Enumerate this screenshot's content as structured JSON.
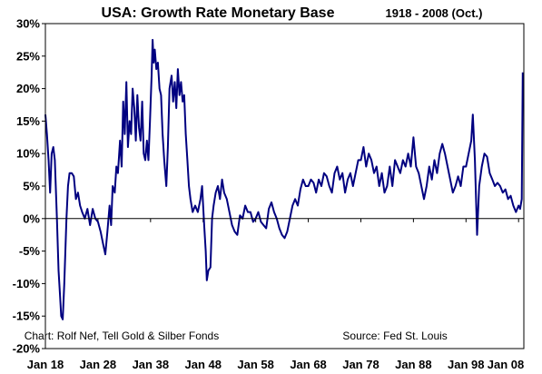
{
  "chart_data": {
    "type": "line",
    "title": "USA: Growth Rate Monetary Base",
    "subtitle": "1918 -  2008 (Oct.)",
    "xlabel": "",
    "ylabel": "",
    "xlim": [
      1918,
      2009
    ],
    "ylim": [
      -20,
      30
    ],
    "grid": false,
    "line_color": "#000080",
    "x_ticks": [
      {
        "x": 1918,
        "label": "Jan 18"
      },
      {
        "x": 1928,
        "label": "Jan 28"
      },
      {
        "x": 1938,
        "label": "Jan 38"
      },
      {
        "x": 1948,
        "label": "Jan 48"
      },
      {
        "x": 1958,
        "label": "Jan 58"
      },
      {
        "x": 1968,
        "label": "Jan 68"
      },
      {
        "x": 1978,
        "label": "Jan 78"
      },
      {
        "x": 1988,
        "label": "Jan 88"
      },
      {
        "x": 1998,
        "label": "Jan 98"
      },
      {
        "x": 2008,
        "label": "Jan 08"
      }
    ],
    "y_ticks": [
      {
        "y": 30,
        "label": "30%"
      },
      {
        "y": 25,
        "label": "25%"
      },
      {
        "y": 20,
        "label": "20%"
      },
      {
        "y": 15,
        "label": "15%"
      },
      {
        "y": 10,
        "label": "10%"
      },
      {
        "y": 5,
        "label": "5%"
      },
      {
        "y": 0,
        "label": "0%"
      },
      {
        "y": -5,
        "label": "-5%"
      },
      {
        "y": -10,
        "label": "-10%"
      },
      {
        "y": -15,
        "label": "-15%"
      },
      {
        "y": -20,
        "label": "-20%"
      }
    ],
    "annotations": [
      {
        "text": "Chart: Rolf Nef, Tell Gold & Silber Fonds",
        "x": 1932.5,
        "y": -18
      },
      {
        "text": "Source: Fed St. Louis",
        "x": 1984.5,
        "y": -18
      }
    ],
    "series": [
      {
        "values": [
          [
            1918.0,
            16.0
          ],
          [
            1918.3,
            13.0
          ],
          [
            1918.6,
            9.0
          ],
          [
            1918.9,
            4.0
          ],
          [
            1919.2,
            10.0
          ],
          [
            1919.5,
            11.0
          ],
          [
            1919.8,
            9.0
          ],
          [
            1920.2,
            0.0
          ],
          [
            1920.5,
            -8.0
          ],
          [
            1920.8,
            -12.0
          ],
          [
            1921.0,
            -15.0
          ],
          [
            1921.3,
            -15.5
          ],
          [
            1921.6,
            -10.0
          ],
          [
            1922.0,
            0.0
          ],
          [
            1922.3,
            5.0
          ],
          [
            1922.6,
            7.0
          ],
          [
            1923.0,
            7.0
          ],
          [
            1923.4,
            6.5
          ],
          [
            1923.8,
            3.0
          ],
          [
            1924.2,
            4.0
          ],
          [
            1924.6,
            2.0
          ],
          [
            1925.0,
            1.0
          ],
          [
            1925.5,
            0.0
          ],
          [
            1926.0,
            1.5
          ],
          [
            1926.5,
            -1.0
          ],
          [
            1927.0,
            1.5
          ],
          [
            1927.5,
            0.0
          ],
          [
            1928.0,
            -0.5
          ],
          [
            1928.5,
            -2.0
          ],
          [
            1929.0,
            -4.0
          ],
          [
            1929.4,
            -5.5
          ],
          [
            1929.8,
            -2.0
          ],
          [
            1930.2,
            2.0
          ],
          [
            1930.5,
            -1.0
          ],
          [
            1930.8,
            5.0
          ],
          [
            1931.2,
            4.0
          ],
          [
            1931.5,
            8.0
          ],
          [
            1931.8,
            7.0
          ],
          [
            1932.2,
            12.0
          ],
          [
            1932.5,
            8.0
          ],
          [
            1932.8,
            18.0
          ],
          [
            1933.1,
            13.0
          ],
          [
            1933.4,
            21.0
          ],
          [
            1933.7,
            11.0
          ],
          [
            1934.0,
            15.0
          ],
          [
            1934.3,
            13.0
          ],
          [
            1934.6,
            20.0
          ],
          [
            1934.9,
            17.0
          ],
          [
            1935.2,
            12.0
          ],
          [
            1935.5,
            19.0
          ],
          [
            1935.8,
            14.0
          ],
          [
            1936.1,
            12.0
          ],
          [
            1936.4,
            18.0
          ],
          [
            1936.7,
            10.0
          ],
          [
            1937.0,
            9.0
          ],
          [
            1937.3,
            12.0
          ],
          [
            1937.6,
            9.0
          ],
          [
            1937.9,
            15.0
          ],
          [
            1938.2,
            22.0
          ],
          [
            1938.4,
            27.5
          ],
          [
            1938.6,
            24.0
          ],
          [
            1938.8,
            26.0
          ],
          [
            1939.1,
            23.0
          ],
          [
            1939.4,
            24.0
          ],
          [
            1939.7,
            20.0
          ],
          [
            1940.0,
            19.0
          ],
          [
            1940.3,
            13.0
          ],
          [
            1940.6,
            9.0
          ],
          [
            1941.0,
            5.0
          ],
          [
            1941.3,
            11.0
          ],
          [
            1941.6,
            20.0
          ],
          [
            1942.0,
            22.0
          ],
          [
            1942.3,
            18.0
          ],
          [
            1942.6,
            21.0
          ],
          [
            1942.9,
            17.0
          ],
          [
            1943.2,
            23.0
          ],
          [
            1943.5,
            19.0
          ],
          [
            1943.8,
            21.0
          ],
          [
            1944.1,
            18.0
          ],
          [
            1944.4,
            19.0
          ],
          [
            1944.7,
            13.0
          ],
          [
            1945.0,
            9.0
          ],
          [
            1945.3,
            5.0
          ],
          [
            1945.6,
            3.0
          ],
          [
            1946.0,
            1.0
          ],
          [
            1946.5,
            2.0
          ],
          [
            1947.0,
            1.0
          ],
          [
            1947.5,
            3.0
          ],
          [
            1947.8,
            5.0
          ],
          [
            1948.2,
            -1.0
          ],
          [
            1948.5,
            -5.0
          ],
          [
            1948.7,
            -9.5
          ],
          [
            1949.0,
            -8.0
          ],
          [
            1949.4,
            -7.5
          ],
          [
            1949.7,
            0.0
          ],
          [
            1950.0,
            2.0
          ],
          [
            1950.4,
            4.0
          ],
          [
            1950.8,
            5.0
          ],
          [
            1951.2,
            3.0
          ],
          [
            1951.6,
            6.0
          ],
          [
            1952.0,
            4.0
          ],
          [
            1952.5,
            3.0
          ],
          [
            1953.0,
            1.0
          ],
          [
            1953.5,
            -1.0
          ],
          [
            1954.0,
            -2.0
          ],
          [
            1954.5,
            -2.5
          ],
          [
            1955.0,
            0.5
          ],
          [
            1955.5,
            0.0
          ],
          [
            1956.0,
            2.0
          ],
          [
            1956.5,
            1.0
          ],
          [
            1957.0,
            1.0
          ],
          [
            1957.5,
            -0.5
          ],
          [
            1958.0,
            0.0
          ],
          [
            1958.5,
            1.0
          ],
          [
            1959.0,
            -0.5
          ],
          [
            1959.5,
            -1.0
          ],
          [
            1960.0,
            -1.5
          ],
          [
            1960.5,
            1.5
          ],
          [
            1961.0,
            2.5
          ],
          [
            1961.5,
            1.0
          ],
          [
            1962.0,
            0.0
          ],
          [
            1962.5,
            -1.5
          ],
          [
            1963.0,
            -2.5
          ],
          [
            1963.5,
            -3.0
          ],
          [
            1964.0,
            -2.0
          ],
          [
            1964.5,
            0.0
          ],
          [
            1965.0,
            2.0
          ],
          [
            1965.5,
            3.0
          ],
          [
            1966.0,
            2.0
          ],
          [
            1966.5,
            4.5
          ],
          [
            1967.0,
            6.0
          ],
          [
            1967.5,
            5.0
          ],
          [
            1968.0,
            5.0
          ],
          [
            1968.5,
            6.0
          ],
          [
            1969.0,
            5.5
          ],
          [
            1969.5,
            4.0
          ],
          [
            1970.0,
            6.0
          ],
          [
            1970.5,
            5.0
          ],
          [
            1971.0,
            7.0
          ],
          [
            1971.5,
            6.5
          ],
          [
            1972.0,
            5.0
          ],
          [
            1972.5,
            4.0
          ],
          [
            1973.0,
            7.0
          ],
          [
            1973.5,
            8.0
          ],
          [
            1974.0,
            6.0
          ],
          [
            1974.5,
            7.0
          ],
          [
            1975.0,
            4.0
          ],
          [
            1975.5,
            6.0
          ],
          [
            1976.0,
            7.0
          ],
          [
            1976.5,
            5.0
          ],
          [
            1977.0,
            7.0
          ],
          [
            1977.5,
            9.0
          ],
          [
            1978.0,
            9.0
          ],
          [
            1978.5,
            11.0
          ],
          [
            1979.0,
            8.0
          ],
          [
            1979.5,
            10.0
          ],
          [
            1980.0,
            9.0
          ],
          [
            1980.5,
            7.0
          ],
          [
            1981.0,
            8.0
          ],
          [
            1981.5,
            5.0
          ],
          [
            1982.0,
            7.0
          ],
          [
            1982.5,
            4.0
          ],
          [
            1983.0,
            5.0
          ],
          [
            1983.5,
            8.0
          ],
          [
            1984.0,
            5.0
          ],
          [
            1984.5,
            9.0
          ],
          [
            1985.0,
            8.0
          ],
          [
            1985.5,
            7.0
          ],
          [
            1986.0,
            9.0
          ],
          [
            1986.5,
            8.0
          ],
          [
            1987.0,
            10.0
          ],
          [
            1987.5,
            8.0
          ],
          [
            1988.0,
            12.5
          ],
          [
            1988.5,
            8.0
          ],
          [
            1989.0,
            7.0
          ],
          [
            1989.5,
            5.0
          ],
          [
            1990.0,
            3.0
          ],
          [
            1990.5,
            5.0
          ],
          [
            1991.0,
            8.0
          ],
          [
            1991.5,
            6.0
          ],
          [
            1992.0,
            9.0
          ],
          [
            1992.5,
            7.0
          ],
          [
            1993.0,
            10.0
          ],
          [
            1993.5,
            11.5
          ],
          [
            1994.0,
            10.0
          ],
          [
            1994.5,
            8.0
          ],
          [
            1995.0,
            6.0
          ],
          [
            1995.5,
            4.0
          ],
          [
            1996.0,
            5.0
          ],
          [
            1996.5,
            6.5
          ],
          [
            1997.0,
            5.0
          ],
          [
            1997.5,
            8.0
          ],
          [
            1998.0,
            8.0
          ],
          [
            1998.5,
            10.0
          ],
          [
            1999.0,
            12.0
          ],
          [
            1999.3,
            16.0
          ],
          [
            1999.7,
            9.0
          ],
          [
            2000.1,
            -2.5
          ],
          [
            2000.5,
            5.0
          ],
          [
            2001.0,
            8.0
          ],
          [
            2001.5,
            10.0
          ],
          [
            2002.0,
            9.5
          ],
          [
            2002.5,
            7.0
          ],
          [
            2003.0,
            6.0
          ],
          [
            2003.5,
            5.0
          ],
          [
            2004.0,
            5.5
          ],
          [
            2004.5,
            5.0
          ],
          [
            2005.0,
            4.0
          ],
          [
            2005.5,
            4.5
          ],
          [
            2006.0,
            3.0
          ],
          [
            2006.5,
            3.5
          ],
          [
            2007.0,
            2.0
          ],
          [
            2007.5,
            1.0
          ],
          [
            2008.0,
            2.0
          ],
          [
            2008.3,
            1.5
          ],
          [
            2008.6,
            3.0
          ],
          [
            2008.8,
            22.5
          ]
        ]
      }
    ]
  }
}
